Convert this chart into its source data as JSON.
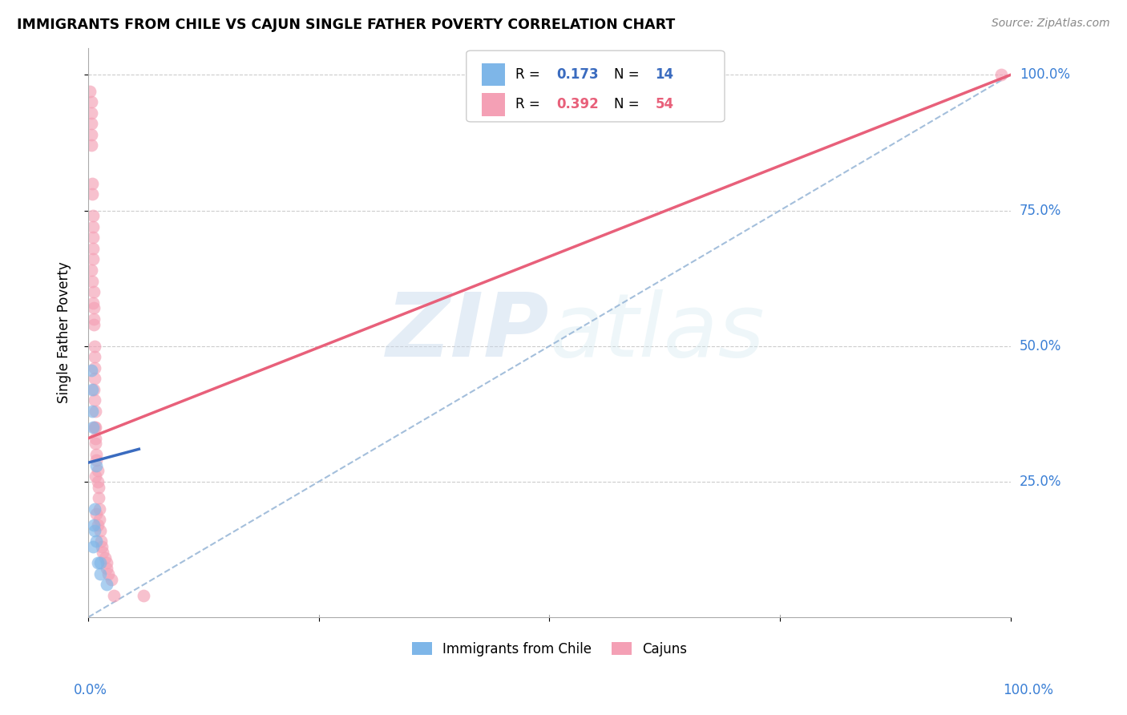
{
  "title": "IMMIGRANTS FROM CHILE VS CAJUN SINGLE FATHER POVERTY CORRELATION CHART",
  "source": "Source: ZipAtlas.com",
  "ylabel": "Single Father Poverty",
  "legend_label1": "Immigrants from Chile",
  "legend_label2": "Cajuns",
  "legend_r1": "R = 0.173",
  "legend_n1": "N = 14",
  "legend_r2": "R = 0.392",
  "legend_n2": "N = 54",
  "watermark_zip": "ZIP",
  "watermark_atlas": "atlas",
  "chile_color": "#7eb6e8",
  "cajun_color": "#f4a0b5",
  "chile_line_color": "#3a6bbf",
  "cajun_line_color": "#e8607a",
  "diagonal_color": "#9ab8d8",
  "cajun_line_x0": 0.0,
  "cajun_line_y0": 0.33,
  "cajun_line_x1": 1.0,
  "cajun_line_y1": 1.0,
  "chile_line_x0": 0.0,
  "chile_line_y0": 0.285,
  "chile_line_x1": 0.055,
  "chile_line_y1": 0.31,
  "chile_x": [
    0.003,
    0.004,
    0.004,
    0.005,
    0.005,
    0.006,
    0.007,
    0.007,
    0.009,
    0.009,
    0.01,
    0.013,
    0.013,
    0.02
  ],
  "chile_y": [
    0.455,
    0.42,
    0.38,
    0.35,
    0.13,
    0.17,
    0.2,
    0.16,
    0.28,
    0.14,
    0.1,
    0.1,
    0.08,
    0.06
  ],
  "cajun_x": [
    0.002,
    0.003,
    0.003,
    0.003,
    0.003,
    0.003,
    0.004,
    0.004,
    0.005,
    0.005,
    0.005,
    0.005,
    0.005,
    0.006,
    0.006,
    0.006,
    0.006,
    0.007,
    0.007,
    0.007,
    0.007,
    0.008,
    0.008,
    0.008,
    0.009,
    0.009,
    0.01,
    0.01,
    0.011,
    0.011,
    0.012,
    0.012,
    0.013,
    0.014,
    0.015,
    0.016,
    0.018,
    0.02,
    0.02,
    0.022,
    0.025,
    0.028,
    0.007,
    0.008,
    0.003,
    0.004,
    0.005,
    0.006,
    0.007,
    0.008,
    0.009,
    0.01,
    0.06,
    0.99
  ],
  "cajun_y": [
    0.97,
    0.95,
    0.93,
    0.91,
    0.89,
    0.87,
    0.8,
    0.78,
    0.74,
    0.72,
    0.7,
    0.68,
    0.66,
    0.6,
    0.57,
    0.55,
    0.54,
    0.5,
    0.48,
    0.46,
    0.44,
    0.38,
    0.35,
    0.32,
    0.3,
    0.29,
    0.27,
    0.25,
    0.24,
    0.22,
    0.2,
    0.18,
    0.16,
    0.14,
    0.13,
    0.12,
    0.11,
    0.1,
    0.09,
    0.08,
    0.07,
    0.04,
    0.35,
    0.33,
    0.64,
    0.62,
    0.58,
    0.42,
    0.4,
    0.26,
    0.19,
    0.17,
    0.04,
    1.0
  ],
  "xlim": [
    0.0,
    1.0
  ],
  "ylim": [
    0.0,
    1.0
  ]
}
